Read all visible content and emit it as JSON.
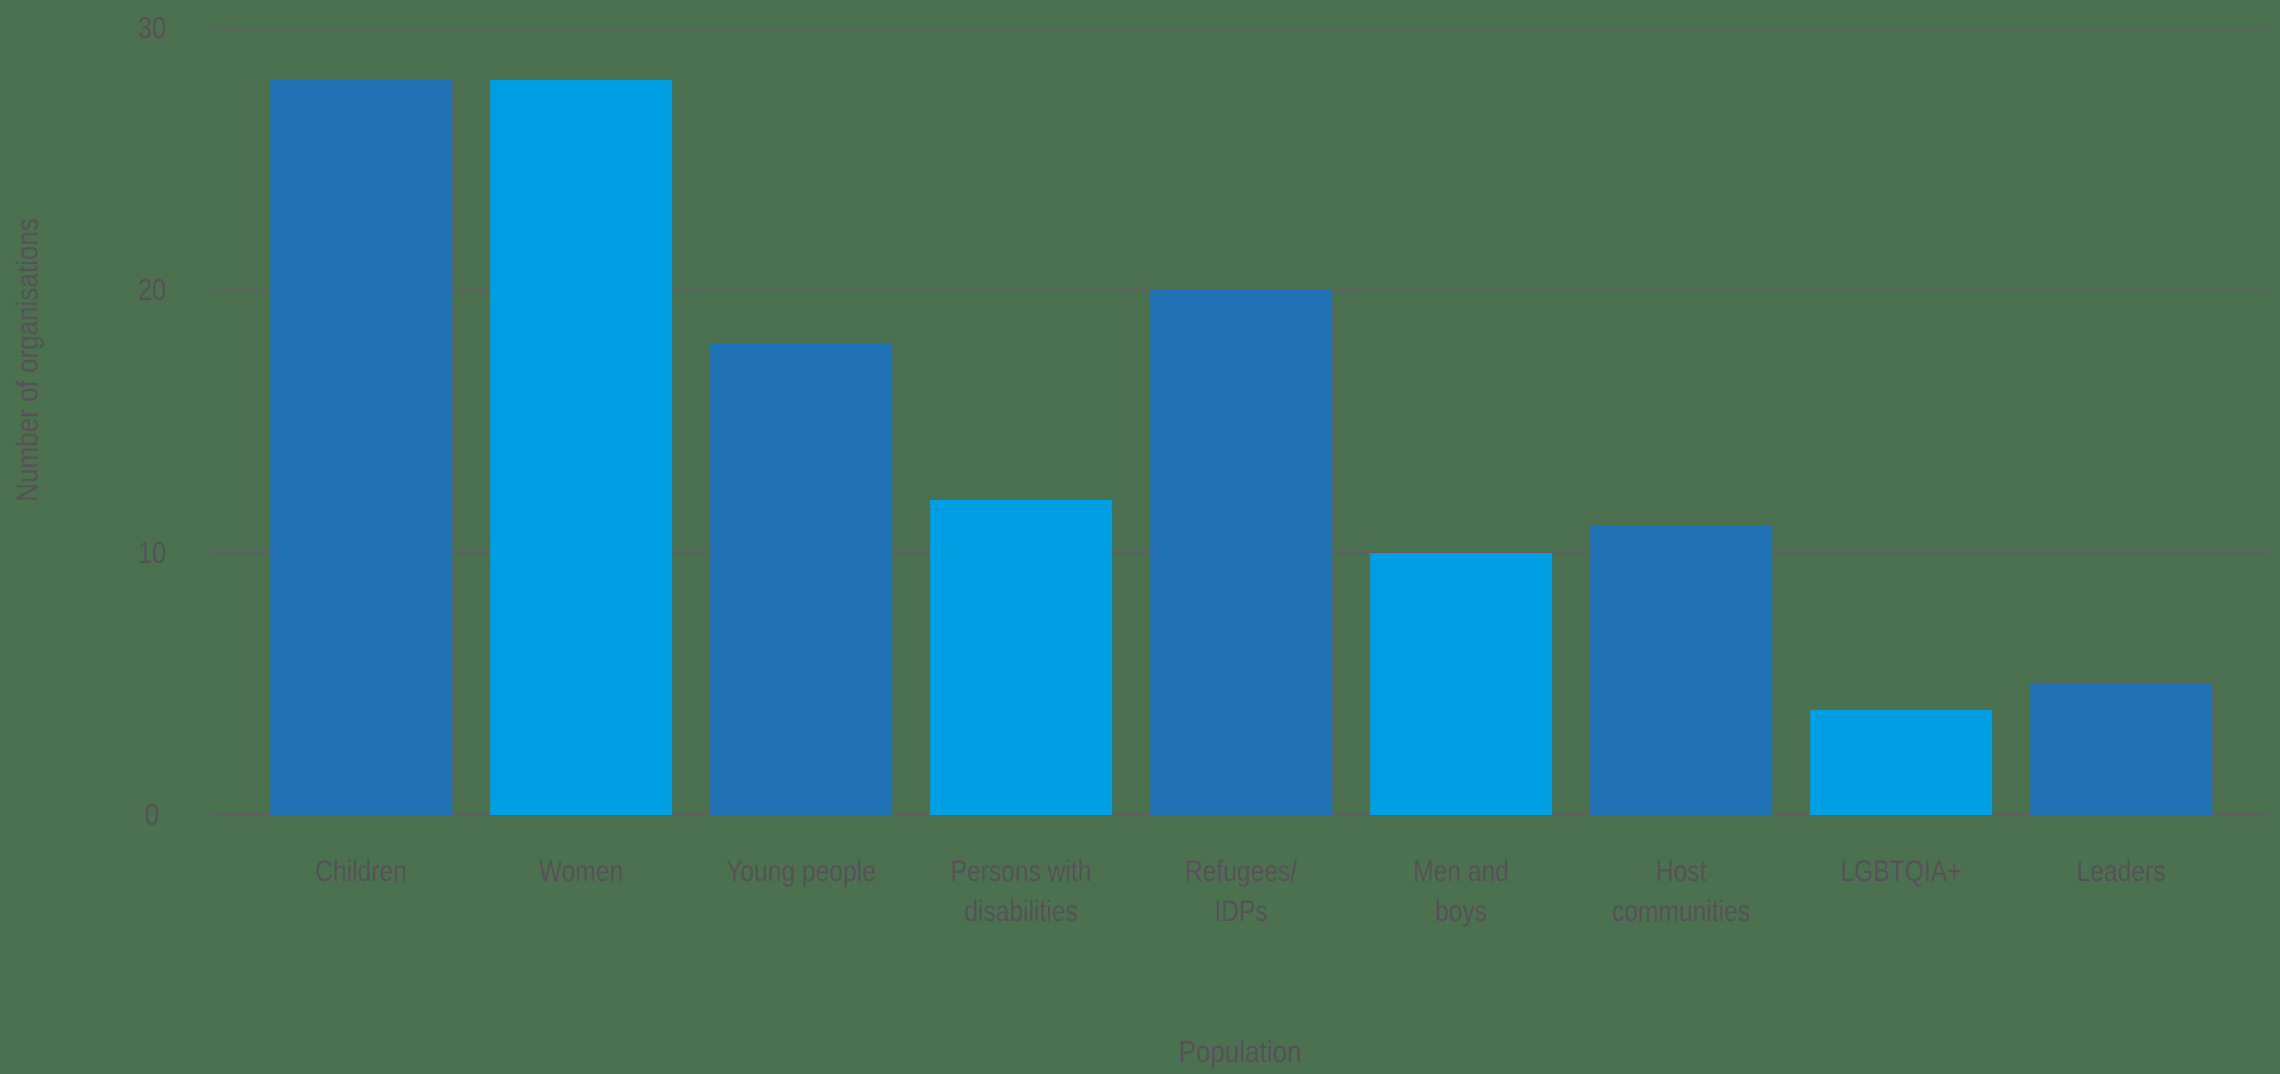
{
  "chart_data": {
    "type": "bar",
    "title": "",
    "categories": [
      "Children",
      "Women",
      "Young people",
      "Persons with\ndisabilities",
      "Refugees/\nIDPs",
      "Men and\nboys",
      "Host\ncommunities",
      "LGBTQIA+",
      "Leaders"
    ],
    "values": [
      28,
      28,
      18,
      12,
      20,
      10,
      11,
      4,
      5
    ],
    "xlabel": "Population",
    "ylabel": "Number of organisations",
    "yticks": [
      0,
      10,
      20,
      30
    ],
    "ylim": [
      0,
      30
    ],
    "grid": "horizontal",
    "legend_position": "none",
    "colors": {
      "bar_alternating": [
        "#2171B6",
        "#009FE3"
      ],
      "background": "#4B7150",
      "text": "#57525A",
      "gridline": "#645D66"
    }
  }
}
